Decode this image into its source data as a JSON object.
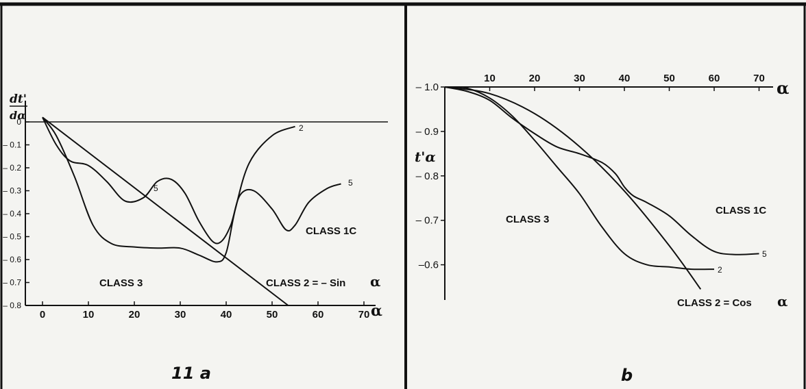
{
  "chart_data": [
    {
      "type": "line",
      "panel_label": "11 a",
      "ylabel": "dt'/dα",
      "xlabel": "α",
      "xlim": [
        0,
        70
      ],
      "ylim": [
        -0.8,
        0
      ],
      "x_ticks": [
        0,
        10,
        20,
        30,
        40,
        50,
        60,
        70
      ],
      "y_ticks": [
        0,
        -0.1,
        -0.2,
        -0.3,
        -0.4,
        -0.5,
        -0.6,
        -0.7,
        -0.8
      ],
      "x_tick_labels": [
        "0",
        "10",
        "20",
        "30",
        "40",
        "50",
        "60",
        "70"
      ],
      "y_tick_labels": [
        "0",
        "– 0.1",
        "– 0.2",
        "– 0.3",
        "– 0.4",
        "– 0.5",
        "– 0.6",
        "– 0.7",
        "– 0.8"
      ],
      "reference_line_y": 0,
      "series": [
        {
          "name": "2",
          "x": [
            0,
            3,
            7,
            11,
            15,
            20,
            25,
            30,
            34,
            38,
            40,
            42,
            45,
            50,
            55
          ],
          "y": [
            0.02,
            -0.06,
            -0.24,
            -0.45,
            -0.53,
            -0.545,
            -0.55,
            -0.55,
            -0.58,
            -0.61,
            -0.57,
            -0.38,
            -0.18,
            -0.06,
            -0.02
          ]
        },
        {
          "name": "5",
          "x": [
            0,
            3,
            6,
            10,
            14,
            18,
            22,
            25,
            28,
            31,
            34,
            37,
            39,
            41,
            43,
            46,
            50,
            53,
            55,
            58,
            62,
            65
          ],
          "y": [
            0.02,
            -0.1,
            -0.17,
            -0.19,
            -0.26,
            -0.345,
            -0.33,
            -0.26,
            -0.25,
            -0.31,
            -0.43,
            -0.52,
            -0.52,
            -0.45,
            -0.32,
            -0.3,
            -0.38,
            -0.47,
            -0.45,
            -0.35,
            -0.29,
            -0.27
          ]
        },
        {
          "name": "CLASS 2 = – Sin α",
          "x": [
            0,
            53.5
          ],
          "y": [
            0.02,
            -0.8
          ]
        }
      ],
      "annotations": [
        "CLASS 1C",
        "CLASS 3",
        "CLASS 2 = – Sin α"
      ],
      "curve_labels": [
        "2",
        "5",
        "5"
      ]
    },
    {
      "type": "line",
      "panel_label": "b",
      "ylabel": "t'α",
      "xlabel": "α",
      "xlim": [
        0,
        70
      ],
      "ylim": [
        -1.0,
        -0.55
      ],
      "x_ticks": [
        10,
        20,
        30,
        40,
        50,
        60,
        70
      ],
      "y_ticks": [
        -1.0,
        -0.9,
        -0.8,
        -0.7,
        -0.6
      ],
      "x_tick_labels": [
        "10",
        "20",
        "30",
        "40",
        "50",
        "60",
        "70"
      ],
      "y_tick_labels": [
        "– 1.0",
        "– 0.9",
        "– 0.8",
        "– 0.7",
        "–0.6"
      ],
      "series": [
        {
          "name": "2",
          "x": [
            0,
            5,
            10,
            15,
            20,
            25,
            30,
            35,
            40,
            45,
            50,
            55,
            60
          ],
          "y": [
            -1.0,
            -0.997,
            -0.975,
            -0.935,
            -0.88,
            -0.82,
            -0.76,
            -0.685,
            -0.625,
            -0.6,
            -0.595,
            -0.59,
            -0.59
          ]
        },
        {
          "name": "5",
          "x": [
            0,
            5,
            10,
            15,
            20,
            25,
            30,
            35,
            38,
            40,
            42,
            45,
            50,
            55,
            60,
            65,
            70
          ],
          "y": [
            -1.0,
            -0.99,
            -0.97,
            -0.93,
            -0.895,
            -0.865,
            -0.85,
            -0.83,
            -0.805,
            -0.775,
            -0.755,
            -0.74,
            -0.71,
            -0.665,
            -0.63,
            -0.623,
            -0.625
          ]
        },
        {
          "name": "CLASS 2 = Cos α",
          "x": [
            0,
            10,
            20,
            30,
            40,
            50,
            57
          ],
          "y": [
            -1.0,
            -0.985,
            -0.94,
            -0.866,
            -0.766,
            -0.643,
            -0.545
          ]
        }
      ],
      "annotations": [
        "CLASS 1C",
        "CLASS 3",
        "CLASS 2 = Cos α"
      ],
      "curve_labels": [
        "5",
        "2"
      ]
    }
  ],
  "panel_a": {
    "ylabel_top": "dt'",
    "ylabel_bottom": "dα",
    "alpha_symbol": "α",
    "label_class1c": "CLASS 1C",
    "label_class3": "CLASS 3",
    "label_class2": "CLASS 2 = – Sin",
    "curve_label_2": "2",
    "curve_label_5a": "5",
    "curve_label_5b": "5",
    "caption": "11 a"
  },
  "panel_b": {
    "ylabel": "t'α",
    "alpha_symbol": "α",
    "label_class1c": "CLASS 1C",
    "label_class3": "CLASS 3",
    "label_class2": "CLASS  2 =  Cos",
    "curve_label_5": "5",
    "curve_label_2": "2",
    "caption": "b"
  }
}
